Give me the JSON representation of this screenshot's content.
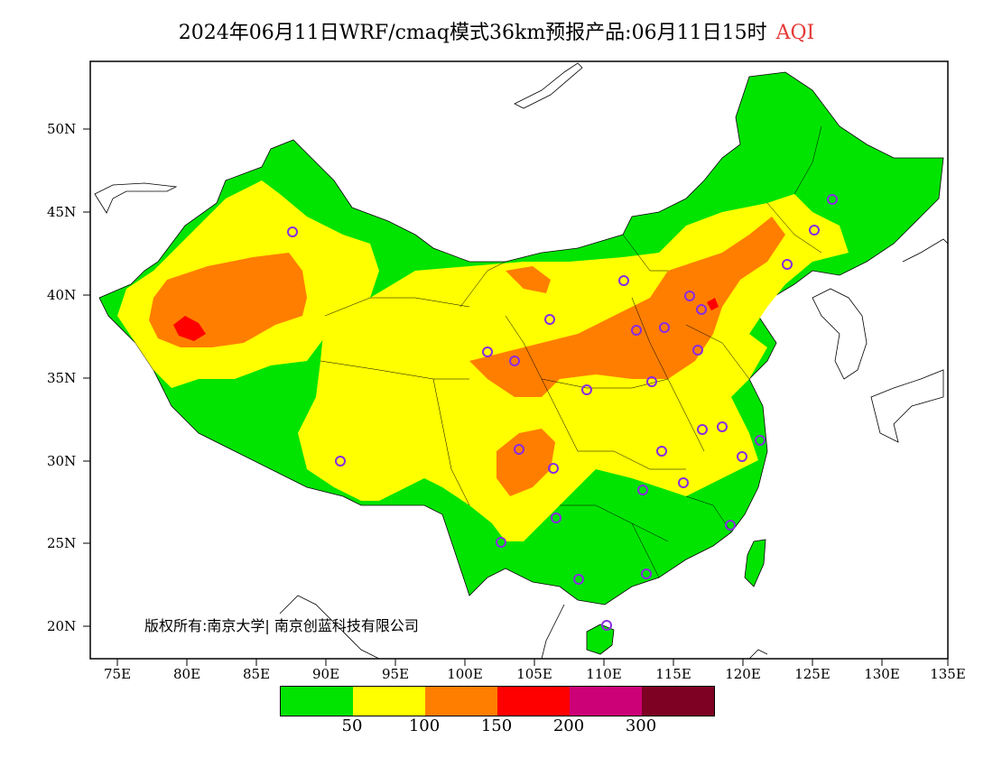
{
  "title": {
    "main": "2024年06月11日WRF/cmaq模式36km预报产品:06月11日15时",
    "accent": "AQI",
    "accent_color": "#e53935"
  },
  "axes": {
    "lat_labels": [
      "50N",
      "45N",
      "40N",
      "35N",
      "30N",
      "25N",
      "20N"
    ],
    "lon_labels": [
      "75E",
      "80E",
      "85E",
      "90E",
      "95E",
      "100E",
      "105E",
      "110E",
      "115E",
      "120E",
      "125E",
      "130E",
      "135E"
    ]
  },
  "copyright": "版权所有:南京大学| 南京创蓝科技有限公司",
  "legend": {
    "colors": [
      "#00e400",
      "#ffff00",
      "#ff7e00",
      "#ff0000",
      "#cc0077",
      "#7e0023"
    ],
    "labels": [
      "50",
      "100",
      "150",
      "200",
      "300"
    ]
  },
  "map": {
    "land_color": "#00e400",
    "moderate_color": "#ffff00",
    "sensitive_color": "#ff7e00",
    "unhealthy_color": "#ff0000",
    "station_color": "#8a2be2"
  }
}
